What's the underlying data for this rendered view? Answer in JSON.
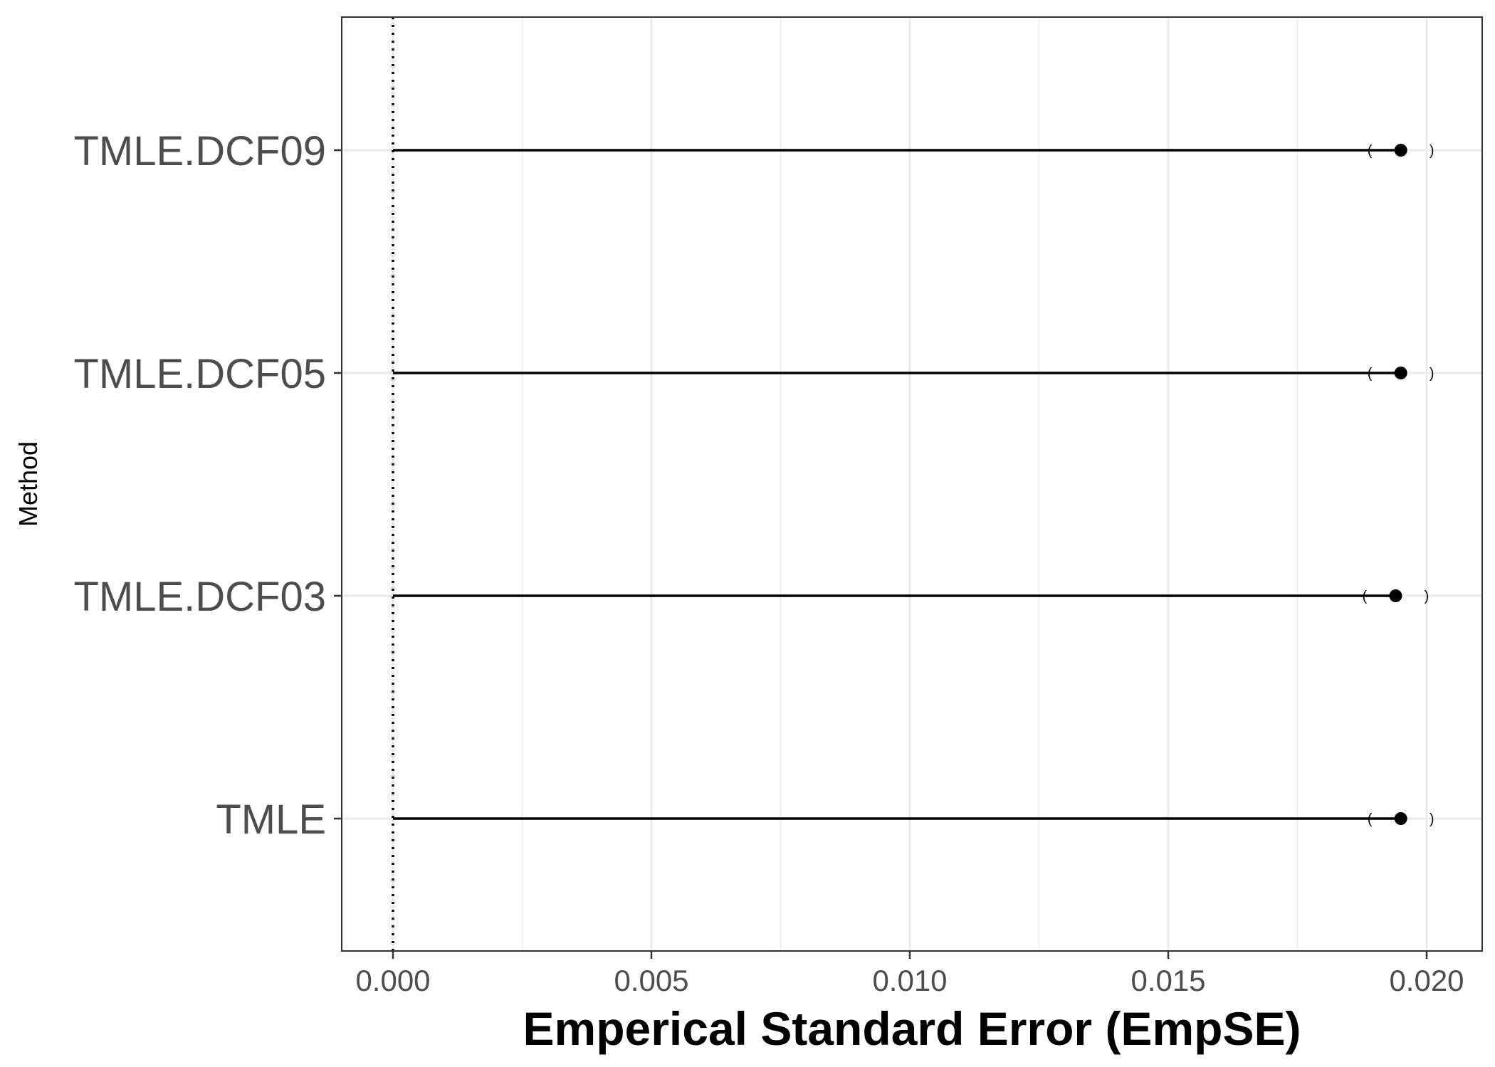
{
  "chart_data": {
    "type": "scatter",
    "subtype": "lollipop with confidence interval brackets",
    "title": "",
    "xlabel": "Emperical Standard Error (EmpSE)",
    "ylabel": "Method",
    "categories": [
      "TMLE.DCF09",
      "TMLE.DCF05",
      "TMLE.DCF03",
      "TMLE"
    ],
    "x_ticks": [
      0.0,
      0.005,
      0.01,
      0.015,
      0.02
    ],
    "x_tick_labels": [
      "0.000",
      "0.005",
      "0.010",
      "0.015",
      "0.020"
    ],
    "xlim": [
      -0.001,
      0.0211
    ],
    "reference_line": 0.0,
    "grid": true,
    "points": [
      {
        "method": "TMLE.DCF09",
        "value": 0.0195,
        "ci_low": 0.0189,
        "ci_high": 0.0201
      },
      {
        "method": "TMLE.DCF05",
        "value": 0.0195,
        "ci_low": 0.0189,
        "ci_high": 0.0201
      },
      {
        "method": "TMLE.DCF03",
        "value": 0.0194,
        "ci_low": 0.0188,
        "ci_high": 0.02
      },
      {
        "method": "TMLE",
        "value": 0.0195,
        "ci_low": 0.0189,
        "ci_high": 0.0201
      }
    ],
    "colors": {
      "segment": "#000000",
      "point": "#000000",
      "gridline": "#ebebeb",
      "panel_border": "#333333",
      "tick_text": "#4d4d4d"
    }
  }
}
